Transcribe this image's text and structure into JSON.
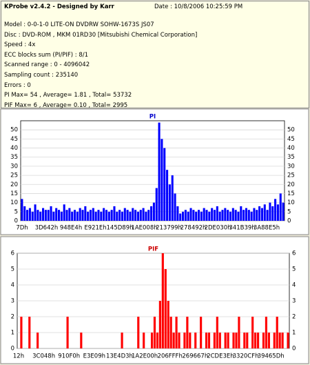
{
  "header": {
    "title": "KProbe v2.4.2 - Designed by Karr",
    "date": "Date : 10/8/2006 10:25:59 PM",
    "lines": [
      "Model : 0-0-1-0 LITE-ON DVDRW SOHW-1673S JS07",
      "Disc : DVD-ROM , MKM 01RD30  [Mitsubishi Chemical Corporation]",
      "Speed : 4x",
      "ECC blocks sum (PI/PIF) : 8/1",
      "Scanned range : 0 - 4096042",
      "Sampling count : 235140",
      "Errors : 0",
      "PI Max= 54 , Average= 1.81 , Total= 53732",
      "PIF Max= 6 , Average= 0.10 , Total= 2995"
    ]
  },
  "chart_data": [
    {
      "type": "bar",
      "title": "PI",
      "color": "#0000ff",
      "title_color": "#0000cc",
      "grid": true,
      "ylim": [
        0,
        55
      ],
      "yticks": [
        0,
        5,
        10,
        15,
        20,
        25,
        30,
        35,
        40,
        45,
        50
      ],
      "x_labels": [
        "7Dh",
        "3D642h",
        "948E4h",
        "E921Eh",
        "145D89h",
        "1AE008h",
        "213799h",
        "278492h",
        "2DE030h",
        "341B39h",
        "3A88E5h"
      ],
      "values": [
        12,
        8,
        6,
        7,
        5,
        9,
        6,
        5,
        7,
        6,
        6,
        8,
        5,
        7,
        6,
        5,
        9,
        6,
        7,
        5,
        6,
        5,
        7,
        6,
        8,
        5,
        6,
        7,
        5,
        6,
        5,
        7,
        6,
        5,
        6,
        8,
        5,
        6,
        5,
        7,
        6,
        5,
        7,
        6,
        5,
        6,
        7,
        5,
        6,
        8,
        10,
        18,
        54,
        45,
        40,
        28,
        20,
        25,
        15,
        8,
        4,
        5,
        6,
        5,
        7,
        6,
        5,
        6,
        5,
        7,
        6,
        5,
        7,
        6,
        8,
        5,
        6,
        7,
        6,
        5,
        7,
        6,
        5,
        8,
        6,
        7,
        6,
        5,
        7,
        6,
        8,
        7,
        9,
        6,
        10,
        8,
        12,
        9,
        15,
        10
      ]
    },
    {
      "type": "bar",
      "title": "PIF",
      "color": "#ff0000",
      "title_color": "#cc0000",
      "grid": true,
      "ylim": [
        0,
        6
      ],
      "yticks": [
        0,
        1,
        2,
        3,
        4,
        5,
        6
      ],
      "x_labels": [
        "12h",
        "3C048h",
        "910F0h",
        "E3E09h",
        "13E4D3h",
        "1A2E00h",
        "206FFFh",
        "269667h",
        "2CDE3Eh",
        "3320CFh",
        "39465Dh"
      ],
      "values": [
        0,
        2,
        0,
        0,
        2,
        0,
        0,
        1,
        0,
        0,
        0,
        0,
        0,
        0,
        0,
        0,
        0,
        0,
        2,
        0,
        0,
        0,
        0,
        1,
        0,
        0,
        0,
        0,
        0,
        0,
        0,
        0,
        0,
        0,
        0,
        0,
        0,
        0,
        1,
        0,
        0,
        0,
        0,
        0,
        2,
        0,
        1,
        0,
        0,
        1,
        2,
        1,
        3,
        6,
        5,
        3,
        2,
        1,
        2,
        1,
        0,
        1,
        2,
        1,
        0,
        1,
        0,
        2,
        0,
        1,
        1,
        0,
        1,
        2,
        1,
        0,
        1,
        1,
        0,
        1,
        1,
        2,
        0,
        1,
        1,
        0,
        2,
        1,
        1,
        0,
        1,
        2,
        1,
        0,
        1,
        2,
        1,
        1,
        0,
        1
      ]
    }
  ]
}
